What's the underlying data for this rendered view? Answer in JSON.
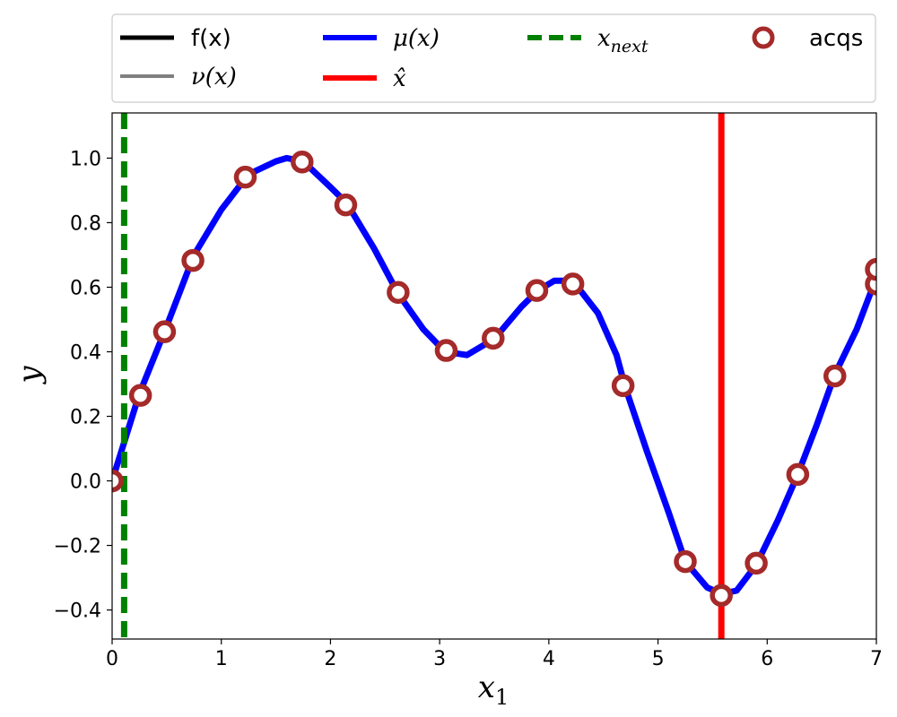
{
  "chart_data": {
    "type": "line",
    "xlabel": "x",
    "xlabel_sub": "1",
    "ylabel": "y",
    "xlim": [
      0,
      7
    ],
    "ylim": [
      -0.49,
      1.14
    ],
    "xticks": [
      0,
      1,
      2,
      3,
      4,
      5,
      6,
      7
    ],
    "yticks": [
      -0.4,
      -0.2,
      0.0,
      0.2,
      0.4,
      0.6,
      0.8,
      1.0
    ],
    "ytick_labels": [
      "−0.4",
      "−0.2",
      "0.0",
      "0.2",
      "0.4",
      "0.6",
      "0.8",
      "1.0"
    ],
    "grid": false,
    "legend_position": "top",
    "legend": [
      {
        "label": "f(x)",
        "color": "#000000",
        "style": "solid"
      },
      {
        "label": "ν(x)",
        "color": "#808080",
        "style": "solid"
      },
      {
        "label": "μ(x)",
        "color": "#0000ff",
        "style": "solid"
      },
      {
        "label": "x̂",
        "color": "#ff0000",
        "style": "solid"
      },
      {
        "label": "x",
        "sub": "next",
        "color": "#008000",
        "style": "dashed"
      },
      {
        "label": "acqs",
        "color": "#a52a2a",
        "style": "marker"
      }
    ],
    "series": [
      {
        "name": "μ(x)",
        "color": "#0000ff",
        "x": [
          0,
          0.25,
          0.5,
          0.75,
          1.0,
          1.25,
          1.5,
          1.6,
          1.75,
          2.0,
          2.15,
          2.4,
          2.62,
          2.85,
          3.05,
          3.25,
          3.5,
          3.75,
          3.9,
          4.05,
          4.22,
          4.45,
          4.62,
          4.7,
          4.9,
          5.1,
          5.25,
          5.45,
          5.58,
          5.72,
          5.9,
          6.1,
          6.28,
          6.45,
          6.62,
          6.82,
          7.0
        ],
        "y": [
          0.0,
          0.27,
          0.48,
          0.7,
          0.84,
          0.95,
          0.99,
          1.0,
          0.99,
          0.91,
          0.86,
          0.72,
          0.58,
          0.47,
          0.4,
          0.39,
          0.44,
          0.54,
          0.59,
          0.62,
          0.62,
          0.52,
          0.39,
          0.29,
          0.09,
          -0.1,
          -0.25,
          -0.33,
          -0.35,
          -0.34,
          -0.26,
          -0.12,
          0.02,
          0.17,
          0.33,
          0.47,
          0.63
        ]
      }
    ],
    "acqs": {
      "name": "acqs",
      "x": [
        0.0,
        0.26,
        0.48,
        0.74,
        1.22,
        1.74,
        2.14,
        2.62,
        3.06,
        3.49,
        3.89,
        4.22,
        4.68,
        5.25,
        5.58,
        5.9,
        6.28,
        6.62,
        7.0,
        7.0
      ],
      "y": [
        0.0,
        0.265,
        0.462,
        0.683,
        0.941,
        0.988,
        0.855,
        0.584,
        0.404,
        0.442,
        0.59,
        0.61,
        0.295,
        -0.25,
        -0.355,
        -0.255,
        0.02,
        0.325,
        0.61,
        0.655
      ]
    },
    "x_hat": 5.58,
    "x_next": 0.11
  }
}
